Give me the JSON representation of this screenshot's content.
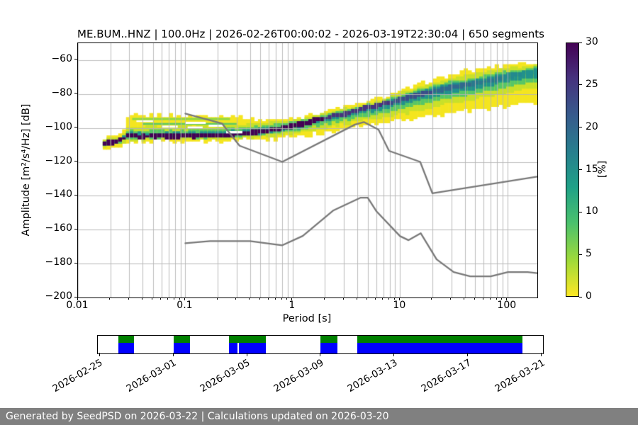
{
  "footer": {
    "text": "Generated by SeedPSD on 2026-03-22 | Calculations updated on 2026-03-20",
    "bg": "#808080",
    "fg": "#ffffff"
  },
  "chart_data": {
    "type": "heatmap",
    "title": "ME.BUM..HNZ | 100.0Hz | 2026-02-26T00:00:02 - 2026-03-19T22:30:04 | 650 segments",
    "xlabel": "Period [s]",
    "ylabel": "Amplitude [m²/s⁴/Hz] [dB]",
    "xscale": "log",
    "xlim": [
      0.01,
      190
    ],
    "ylim": [
      -200,
      -50
    ],
    "grid": true,
    "xticks": {
      "values": [
        0.01,
        0.1,
        1,
        10,
        100
      ],
      "labels": [
        "0.01",
        "0.1",
        "1",
        "10",
        "100"
      ]
    },
    "yticks": {
      "values": [
        -60,
        -80,
        -100,
        -120,
        -140,
        -160,
        -180,
        -200
      ],
      "labels": [
        "−60",
        "−80",
        "−100",
        "−120",
        "−140",
        "−160",
        "−180",
        "−200"
      ]
    },
    "colors": {
      "grid": "#b4b4b4",
      "noise_line": "#787878",
      "spine": "#000000"
    },
    "colorbar": {
      "label": "[%]",
      "min": 0,
      "max": 30,
      "ticks": [
        0,
        5,
        10,
        15,
        20,
        25,
        30
      ],
      "colormap": "viridis_r"
    },
    "ppsd": {
      "p_range": [
        0.017,
        190
      ],
      "ridge": [
        [
          0.017,
          -109
        ],
        [
          0.022,
          -108
        ],
        [
          0.0265,
          -106.5
        ],
        [
          0.028,
          -105
        ],
        [
          0.05,
          -104.8
        ],
        [
          0.1,
          -104.8
        ],
        [
          0.2,
          -104.3
        ],
        [
          0.3,
          -103.8
        ],
        [
          0.45,
          -102.8
        ],
        [
          0.65,
          -101.2
        ],
        [
          1.0,
          -98.8
        ],
        [
          1.5,
          -96.2
        ],
        [
          2.2,
          -93.6
        ],
        [
          3.2,
          -91.2
        ],
        [
          4.7,
          -88.6
        ],
        [
          7,
          -86
        ],
        [
          10,
          -83.2
        ],
        [
          15,
          -80.2
        ],
        [
          22,
          -77.8
        ],
        [
          33,
          -75.8
        ],
        [
          50,
          -73.8
        ],
        [
          75,
          -71.5
        ],
        [
          110,
          -69.2
        ],
        [
          150,
          -67.8
        ],
        [
          190,
          -66.6
        ]
      ],
      "top_offset": [
        [
          0.017,
          2.5
        ],
        [
          0.022,
          3
        ],
        [
          0.027,
          3.5
        ],
        [
          0.03,
          12.3
        ],
        [
          0.06,
          12.3
        ],
        [
          0.1,
          12
        ],
        [
          0.2,
          11.5
        ],
        [
          0.3,
          11
        ],
        [
          0.4,
          8
        ],
        [
          0.55,
          6.5
        ],
        [
          0.8,
          5.5
        ],
        [
          1.2,
          4.5
        ],
        [
          2,
          4
        ],
        [
          3.5,
          3.8
        ],
        [
          6,
          4.2
        ],
        [
          10,
          5
        ],
        [
          20,
          6.8
        ],
        [
          40,
          8.3
        ],
        [
          70,
          7.8
        ],
        [
          110,
          7
        ],
        [
          150,
          6
        ],
        [
          190,
          5.5
        ]
      ],
      "bottom_offset": [
        [
          0.017,
          3.5
        ],
        [
          0.027,
          3
        ],
        [
          0.1,
          3.2
        ],
        [
          0.3,
          3.5
        ],
        [
          0.5,
          4.5
        ],
        [
          0.8,
          6
        ],
        [
          1.2,
          7.5
        ],
        [
          2,
          8.5
        ],
        [
          3.5,
          9.5
        ],
        [
          6,
          11
        ],
        [
          10,
          12.5
        ],
        [
          20,
          14.5
        ],
        [
          40,
          15.5
        ],
        [
          70,
          16.5
        ],
        [
          110,
          17
        ],
        [
          150,
          18
        ],
        [
          190,
          19.5
        ]
      ],
      "layer_colors": [
        "#f4e51f",
        "#c8e02a",
        "#56c667",
        "#21918c"
      ],
      "core_colors": [
        [
          2,
          "#440154"
        ],
        [
          8,
          "#46327e"
        ],
        [
          20,
          "#3b4d8a"
        ],
        [
          45,
          "#31688e"
        ],
        [
          90,
          "#2a788e"
        ],
        [
          140,
          "#23898e"
        ],
        [
          1000,
          "#21918c"
        ]
      ],
      "green_streaks": [
        {
          "p0": 0.032,
          "p1": 0.26,
          "db": -94.7,
          "h": 1.3,
          "color": "#90d743"
        },
        {
          "p0": 0.04,
          "p1": 0.3,
          "db": -97.6,
          "h": 1.1,
          "color": "#5ec962"
        }
      ],
      "white_holes": [
        {
          "p0": 0.1,
          "p1": 0.155,
          "db": -97.0,
          "h": 1.3
        },
        {
          "p0": 0.105,
          "p1": 0.145,
          "db": -99.7,
          "h": 1.2
        },
        {
          "p0": 0.165,
          "p1": 0.225,
          "db": -98.7,
          "h": 1.3
        },
        {
          "p0": 0.24,
          "p1": 0.34,
          "db": -102.5,
          "h": 1.4
        },
        {
          "p0": 0.06,
          "p1": 0.085,
          "db": -99.2,
          "h": 1.2
        },
        {
          "p0": 0.035,
          "p1": 0.05,
          "db": -96.0,
          "h": 1.0
        }
      ]
    },
    "noise_models": {
      "nhnm": [
        [
          0.1,
          -91.5
        ],
        [
          0.22,
          -97.4
        ],
        [
          0.32,
          -110.5
        ],
        [
          0.8,
          -120.0
        ],
        [
          3.8,
          -98.0
        ],
        [
          4.6,
          -96.5
        ],
        [
          6.3,
          -101.0
        ],
        [
          7.9,
          -113.5
        ],
        [
          15.4,
          -120.0
        ],
        [
          20.0,
          -138.5
        ],
        [
          190,
          -128.7
        ]
      ],
      "nlnm": [
        [
          0.1,
          -168.0
        ],
        [
          0.17,
          -166.7
        ],
        [
          0.4,
          -166.7
        ],
        [
          0.8,
          -169.2
        ],
        [
          1.24,
          -163.7
        ],
        [
          2.4,
          -148.6
        ],
        [
          4.3,
          -141.1
        ],
        [
          5.0,
          -141.1
        ],
        [
          6.0,
          -149.0
        ],
        [
          10.0,
          -163.8
        ],
        [
          12.0,
          -166.2
        ],
        [
          15.6,
          -162.1
        ],
        [
          21.9,
          -177.5
        ],
        [
          31.6,
          -185.0
        ],
        [
          45.0,
          -187.5
        ],
        [
          70.0,
          -187.5
        ],
        [
          101.0,
          -185.0
        ],
        [
          154.0,
          -185.0
        ],
        [
          190,
          -185.6
        ]
      ]
    }
  },
  "timeline": {
    "domain": {
      "start": "2026-02-24T21:30:00",
      "end": "2026-03-21T01:40:00"
    },
    "ticks": [
      {
        "date": "2026-02-25T00:00:00",
        "label": "2026-02-25"
      },
      {
        "date": "2026-03-01T00:00:00",
        "label": "2026-03-01"
      },
      {
        "date": "2026-03-05T00:00:00",
        "label": "2026-03-05"
      },
      {
        "date": "2026-03-09T00:00:00",
        "label": "2026-03-09"
      },
      {
        "date": "2026-03-13T00:00:00",
        "label": "2026-03-13"
      },
      {
        "date": "2026-03-17T00:00:00",
        "label": "2026-03-17"
      },
      {
        "date": "2026-03-21T00:00:00",
        "label": "2026-03-21"
      }
    ],
    "segments": [
      {
        "start": "2026-02-26T00:00:00",
        "end": "2026-02-26T21:00:00"
      },
      {
        "start": "2026-03-01T00:00:00",
        "end": "2026-03-01T22:00:00"
      },
      {
        "start": "2026-03-04T00:00:00",
        "end": "2026-03-06T00:00:00"
      },
      {
        "start": "2026-03-09T00:00:00",
        "end": "2026-03-09T22:00:00"
      },
      {
        "start": "2026-03-11T00:00:00",
        "end": "2026-03-19T22:30:00"
      }
    ],
    "gaps": [
      {
        "at": "2026-03-04T12:00:00",
        "row": "blue"
      }
    ],
    "colors": {
      "green": "#008000",
      "blue": "#0000ff"
    }
  }
}
